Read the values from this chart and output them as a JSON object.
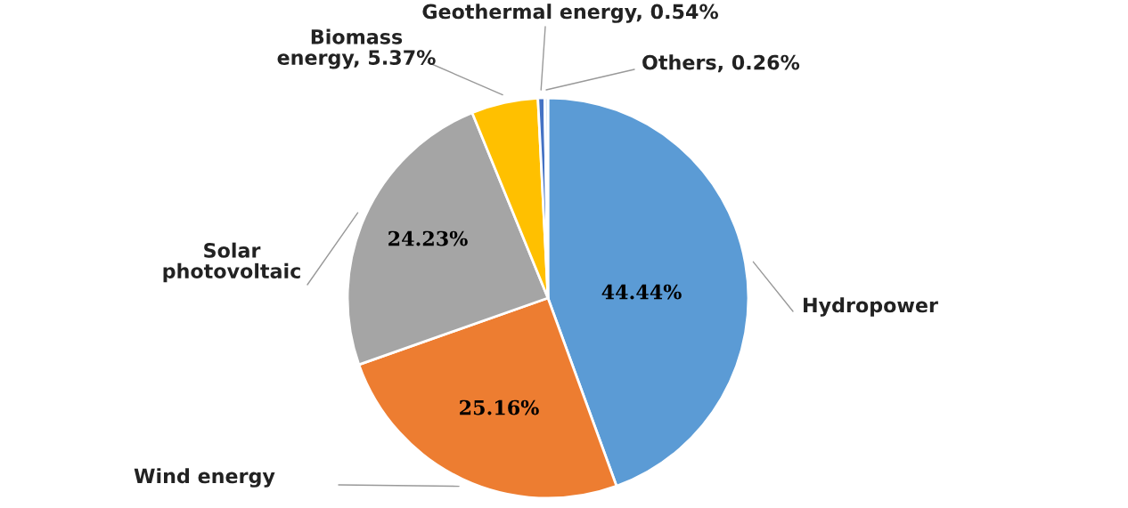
{
  "chart_data": {
    "type": "pie",
    "categories": [
      "Hydropower",
      "Wind energy",
      "Solar\nphotovoltaic",
      "Biomass\nenergy, 5.37%",
      "Geothermal energy, 0.54%",
      "Others, 0.26%"
    ],
    "values": [
      44.44,
      25.16,
      24.23,
      5.37,
      0.54,
      0.26
    ],
    "colors": [
      "#5b9bd5",
      "#ed7d31",
      "#a5a5a5",
      "#ffc000",
      "#4472c4",
      "#c9d9ef"
    ],
    "value_labels": [
      "44.44%",
      "25.16%",
      "24.23%",
      null,
      null,
      null
    ]
  }
}
